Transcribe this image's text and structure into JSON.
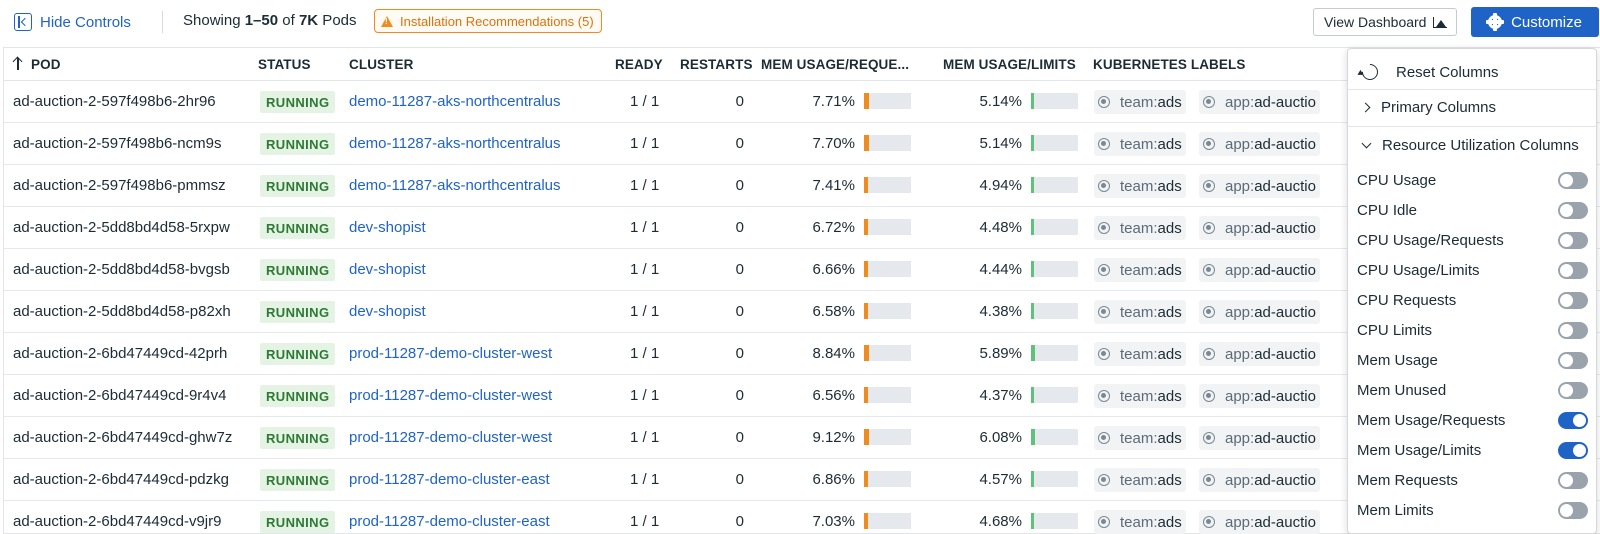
{
  "toolbar": {
    "hide_controls": "Hide Controls",
    "showing_prefix": "Showing ",
    "showing_range": "1–50",
    "showing_of": " of ",
    "showing_total": "7K",
    "showing_suffix": " Pods",
    "install_rec": "Installation Recommendations (5)",
    "view_dashboard": "View Dashboard",
    "customize": "Customize"
  },
  "table": {
    "headers": {
      "pod": "POD",
      "status": "STATUS",
      "cluster": "CLUSTER",
      "ready": "READY",
      "restarts": "RESTARTS",
      "mem_req": "MEM USAGE/REQUE...",
      "mem_lim": "MEM USAGE/LIMITS",
      "labels": "KUBERNETES LABELS"
    },
    "rows": [
      {
        "pod": "ad-auction-2-597f498b6-2hr96",
        "status": "RUNNING",
        "cluster": "demo-11287-aks-northcentralus",
        "ready": "1 / 1",
        "restarts": "0",
        "mem_req": "7.71%",
        "mem_req_val": 7.71,
        "mem_lim": "5.14%",
        "mem_lim_val": 5.14,
        "label1_key": "team:",
        "label1_val": "ads",
        "label2_key": "app:",
        "label2_val": "ad-auctio"
      },
      {
        "pod": "ad-auction-2-597f498b6-ncm9s",
        "status": "RUNNING",
        "cluster": "demo-11287-aks-northcentralus",
        "ready": "1 / 1",
        "restarts": "0",
        "mem_req": "7.70%",
        "mem_req_val": 7.7,
        "mem_lim": "5.14%",
        "mem_lim_val": 5.14,
        "label1_key": "team:",
        "label1_val": "ads",
        "label2_key": "app:",
        "label2_val": "ad-auctio"
      },
      {
        "pod": "ad-auction-2-597f498b6-pmmsz",
        "status": "RUNNING",
        "cluster": "demo-11287-aks-northcentralus",
        "ready": "1 / 1",
        "restarts": "0",
        "mem_req": "7.41%",
        "mem_req_val": 7.41,
        "mem_lim": "4.94%",
        "mem_lim_val": 4.94,
        "label1_key": "team:",
        "label1_val": "ads",
        "label2_key": "app:",
        "label2_val": "ad-auctio"
      },
      {
        "pod": "ad-auction-2-5dd8bd4d58-5rxpw",
        "status": "RUNNING",
        "cluster": "dev-shopist",
        "ready": "1 / 1",
        "restarts": "0",
        "mem_req": "6.72%",
        "mem_req_val": 6.72,
        "mem_lim": "4.48%",
        "mem_lim_val": 4.48,
        "label1_key": "team:",
        "label1_val": "ads",
        "label2_key": "app:",
        "label2_val": "ad-auctio"
      },
      {
        "pod": "ad-auction-2-5dd8bd4d58-bvgsb",
        "status": "RUNNING",
        "cluster": "dev-shopist",
        "ready": "1 / 1",
        "restarts": "0",
        "mem_req": "6.66%",
        "mem_req_val": 6.66,
        "mem_lim": "4.44%",
        "mem_lim_val": 4.44,
        "label1_key": "team:",
        "label1_val": "ads",
        "label2_key": "app:",
        "label2_val": "ad-auctio"
      },
      {
        "pod": "ad-auction-2-5dd8bd4d58-p82xh",
        "status": "RUNNING",
        "cluster": "dev-shopist",
        "ready": "1 / 1",
        "restarts": "0",
        "mem_req": "6.58%",
        "mem_req_val": 6.58,
        "mem_lim": "4.38%",
        "mem_lim_val": 4.38,
        "label1_key": "team:",
        "label1_val": "ads",
        "label2_key": "app:",
        "label2_val": "ad-auctio"
      },
      {
        "pod": "ad-auction-2-6bd47449cd-42prh",
        "status": "RUNNING",
        "cluster": "prod-11287-demo-cluster-west",
        "ready": "1 / 1",
        "restarts": "0",
        "mem_req": "8.84%",
        "mem_req_val": 8.84,
        "mem_lim": "5.89%",
        "mem_lim_val": 5.89,
        "label1_key": "team:",
        "label1_val": "ads",
        "label2_key": "app:",
        "label2_val": "ad-auctio"
      },
      {
        "pod": "ad-auction-2-6bd47449cd-9r4v4",
        "status": "RUNNING",
        "cluster": "prod-11287-demo-cluster-west",
        "ready": "1 / 1",
        "restarts": "0",
        "mem_req": "6.56%",
        "mem_req_val": 6.56,
        "mem_lim": "4.37%",
        "mem_lim_val": 4.37,
        "label1_key": "team:",
        "label1_val": "ads",
        "label2_key": "app:",
        "label2_val": "ad-auctio"
      },
      {
        "pod": "ad-auction-2-6bd47449cd-ghw7z",
        "status": "RUNNING",
        "cluster": "prod-11287-demo-cluster-west",
        "ready": "1 / 1",
        "restarts": "0",
        "mem_req": "9.12%",
        "mem_req_val": 9.12,
        "mem_lim": "6.08%",
        "mem_lim_val": 6.08,
        "label1_key": "team:",
        "label1_val": "ads",
        "label2_key": "app:",
        "label2_val": "ad-auctio"
      },
      {
        "pod": "ad-auction-2-6bd47449cd-pdzkg",
        "status": "RUNNING",
        "cluster": "prod-11287-demo-cluster-east",
        "ready": "1 / 1",
        "restarts": "0",
        "mem_req": "6.86%",
        "mem_req_val": 6.86,
        "mem_lim": "4.57%",
        "mem_lim_val": 4.57,
        "label1_key": "team:",
        "label1_val": "ads",
        "label2_key": "app:",
        "label2_val": "ad-auctio"
      },
      {
        "pod": "ad-auction-2-6bd47449cd-v9jr9",
        "status": "RUNNING",
        "cluster": "prod-11287-demo-cluster-east",
        "ready": "1 / 1",
        "restarts": "0",
        "mem_req": "7.03%",
        "mem_req_val": 7.03,
        "mem_lim": "4.68%",
        "mem_lim_val": 4.68,
        "label1_key": "team:",
        "label1_val": "ads",
        "label2_key": "app:",
        "label2_val": "ad-auctio"
      }
    ]
  },
  "panel": {
    "reset": "Reset Columns",
    "primary": "Primary Columns",
    "resource": "Resource Utilization Columns",
    "toggles": [
      {
        "label": "CPU Usage",
        "on": false
      },
      {
        "label": "CPU Idle",
        "on": false
      },
      {
        "label": "CPU Usage/Requests",
        "on": false
      },
      {
        "label": "CPU Usage/Limits",
        "on": false
      },
      {
        "label": "CPU Requests",
        "on": false
      },
      {
        "label": "CPU Limits",
        "on": false
      },
      {
        "label": "Mem Usage",
        "on": false
      },
      {
        "label": "Mem Unused",
        "on": false
      },
      {
        "label": "Mem Usage/Requests",
        "on": true
      },
      {
        "label": "Mem Usage/Limits",
        "on": true
      },
      {
        "label": "Mem Requests",
        "on": false
      },
      {
        "label": "Mem Limits",
        "on": false
      }
    ]
  },
  "colors": {
    "accent": "#1f63c6",
    "running_bg": "#e5f3e4",
    "running_text": "#2c7a33",
    "mem_req_bar": "#f08c1e",
    "mem_lim_bar": "#5ec27b",
    "warning": "#f08c1e"
  },
  "icons": {
    "hide_controls": "collapse-panel-icon",
    "warning": "warning-icon",
    "dashboard": "dashboard-icon",
    "customize": "gear-icon",
    "sort": "arrow-up-icon",
    "label": "kubernetes-icon",
    "reset": "reset-icon"
  }
}
